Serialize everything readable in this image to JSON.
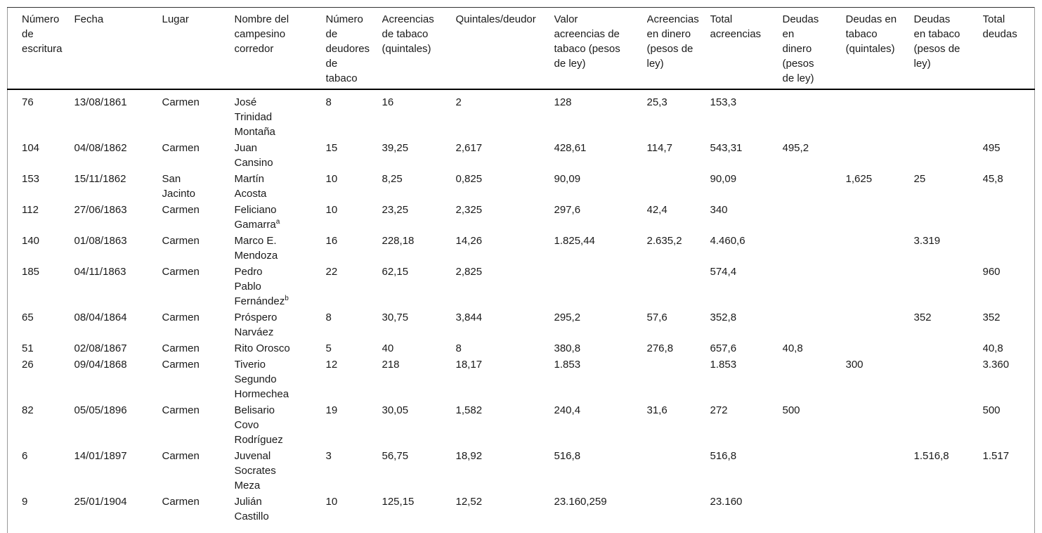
{
  "table": {
    "title_semantic": "tobacco-broker-credits-and-debts-table",
    "headers": [
      "Número\nde\nescritura",
      "Fecha",
      "Lugar",
      "Nombre del\ncampesino\ncorredor",
      "Número\nde\ndeudores\nde\ntabaco",
      "Acreencias\nde tabaco\n(quintales)",
      "Quintales/deudor",
      "Valor\nacreencias de\ntabaco (pesos\nde ley)",
      "Acreencias\nen dinero\n(pesos de\nley)",
      "Total\nacreencias",
      "Deudas\nen\ndinero\n(pesos\nde ley)",
      "Deudas en\ntabaco\n(quintales)",
      "Deudas\nen tabaco\n(pesos de\nley)",
      "Total\ndeudas"
    ],
    "cell_names": [
      "cell-numero-escritura",
      "cell-fecha",
      "cell-lugar",
      "cell-nombre-campesino",
      "cell-numero-deudores",
      "cell-acreencias-tabaco-quintales",
      "cell-quintales-deudor",
      "cell-valor-acreencias-tabaco",
      "cell-acreencias-dinero",
      "cell-total-acreencias",
      "cell-deudas-dinero",
      "cell-deudas-tabaco-quintales",
      "cell-deudas-tabaco-pesos",
      "cell-total-deudas"
    ],
    "rows": [
      {
        "cells": [
          "76",
          "13/08/1861",
          "Carmen",
          "José\nTrinidad\nMontaña",
          "8",
          "16",
          "2",
          "128",
          "25,3",
          "153,3",
          "",
          "",
          "",
          ""
        ]
      },
      {
        "cells": [
          "104",
          "04/08/1862",
          "Carmen",
          "Juan\nCansino",
          "15",
          "39,25",
          "2,617",
          "428,61",
          "114,7",
          "543,31",
          "495,2",
          "",
          "",
          "495"
        ]
      },
      {
        "cells": [
          "153",
          "15/11/1862",
          "San\nJacinto",
          "Martín\nAcosta",
          "10",
          "8,25",
          "0,825",
          "90,09",
          "",
          "90,09",
          "",
          "1,625",
          "25",
          "45,8"
        ]
      },
      {
        "cells": [
          "112",
          "27/06/1863",
          "Carmen",
          "Feliciano\nGamarra",
          "10",
          "23,25",
          "2,325",
          "297,6",
          "42,4",
          "340",
          "",
          "",
          "",
          ""
        ],
        "sup": {
          "col": 3,
          "text": "a"
        }
      },
      {
        "cells": [
          "140",
          "01/08/1863",
          "Carmen",
          "Marco E.\nMendoza",
          "16",
          "228,18",
          "14,26",
          "1.825,44",
          "2.635,2",
          "4.460,6",
          "",
          "",
          "3.319",
          ""
        ]
      },
      {
        "cells": [
          "185",
          "04/11/1863",
          "Carmen",
          "Pedro\nPablo\nFernández",
          "22",
          "62,15",
          "2,825",
          "",
          "",
          "574,4",
          "",
          "",
          "",
          "960"
        ],
        "sup": {
          "col": 3,
          "text": "b"
        }
      },
      {
        "cells": [
          "65",
          "08/04/1864",
          "Carmen",
          "Próspero\nNarváez",
          "8",
          "30,75",
          "3,844",
          "295,2",
          "57,6",
          "352,8",
          "",
          "",
          "352",
          "352"
        ]
      },
      {
        "cells": [
          "51",
          "02/08/1867",
          "Carmen",
          "Rito Orosco",
          "5",
          "40",
          "8",
          "380,8",
          "276,8",
          "657,6",
          "40,8",
          "",
          "",
          "40,8"
        ]
      },
      {
        "cells": [
          "26",
          "09/04/1868",
          "Carmen",
          "Tiverio\nSegundo\nHormechea",
          "12",
          "218",
          "18,17",
          "1.853",
          "",
          "1.853",
          "",
          "300",
          "",
          "3.360"
        ]
      },
      {
        "cells": [
          "82",
          "05/05/1896",
          "Carmen",
          "Belisario\nCovo\nRodríguez",
          "19",
          "30,05",
          "1,582",
          "240,4",
          "31,6",
          "272",
          "500",
          "",
          "",
          "500"
        ]
      },
      {
        "cells": [
          "6",
          "14/01/1897",
          "Carmen",
          "Juvenal\nSocrates\nMeza",
          "3",
          "56,75",
          "18,92",
          "516,8",
          "",
          "516,8",
          "",
          "",
          "1.516,8",
          "1.517"
        ]
      },
      {
        "cells": [
          "9",
          "25/01/1904",
          "Carmen",
          "Julián\nCastillo",
          "10",
          "125,15",
          "12,52",
          "23.160,259",
          "",
          "23.160",
          "",
          "",
          "",
          ""
        ]
      }
    ]
  }
}
